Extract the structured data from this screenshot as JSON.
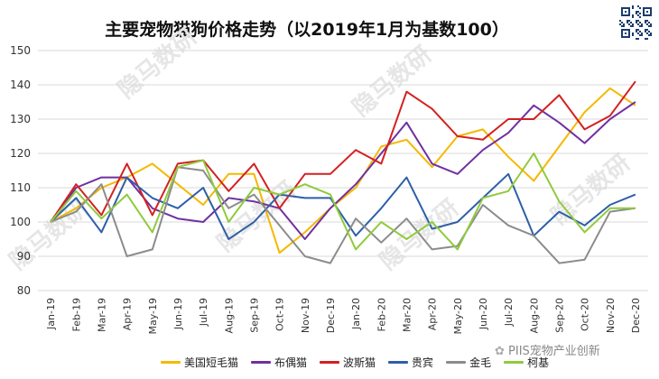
{
  "header": {
    "title": "主要宠物猫狗价格走势（以2019年1月为基数100）"
  },
  "watermark": {
    "brand": "隐马数研",
    "source": "PIIS宠物产业创新"
  },
  "colors": {
    "grid": "#d9d9d9",
    "axis_text": "#333333",
    "watermark": "#e6e6e6"
  },
  "chart_data": {
    "type": "line",
    "title": "主要宠物猫狗价格走势（以2019年1月为基数100）",
    "xlabel": "",
    "ylabel": "",
    "ylim": [
      80,
      150
    ],
    "yticks": [
      80,
      90,
      100,
      110,
      120,
      130,
      140,
      150
    ],
    "grid": true,
    "legend_position": "bottom",
    "categories": [
      "Jan-19",
      "Feb-19",
      "Mar-19",
      "Apr-19",
      "May-19",
      "Jun-19",
      "Jul-19",
      "Aug-19",
      "Sep-19",
      "Oct-19",
      "Nov-19",
      "Dec-19",
      "Jan-20",
      "Feb-20",
      "Mar-20",
      "Apr-20",
      "May-20",
      "Jun-20",
      "Jul-20",
      "Aug-20",
      "Sep-20",
      "Oct-20",
      "Nov-20",
      "Dec-20"
    ],
    "series": [
      {
        "name": "美国短毛猫",
        "color": "#f5b800",
        "values": [
          100,
          104,
          110,
          113,
          117,
          111,
          105,
          114,
          114,
          91,
          97,
          104,
          110,
          122,
          124,
          116,
          125,
          127,
          119,
          112,
          122,
          132,
          139,
          134
        ]
      },
      {
        "name": "布偶猫",
        "color": "#7030a0",
        "values": [
          100,
          110,
          113,
          113,
          104,
          101,
          100,
          107,
          106,
          104,
          95,
          104,
          111,
          120,
          129,
          117,
          114,
          121,
          126,
          134,
          129,
          123,
          130,
          135
        ]
      },
      {
        "name": "波斯猫",
        "color": "#d42020",
        "values": [
          100,
          111,
          102,
          117,
          102,
          117,
          118,
          109,
          117,
          104,
          114,
          114,
          121,
          117,
          138,
          133,
          125,
          124,
          130,
          130,
          137,
          127,
          131,
          141
        ]
      },
      {
        "name": "贵宾",
        "color": "#2e5fa8",
        "values": [
          100,
          107,
          97,
          113,
          107,
          104,
          110,
          95,
          100,
          108,
          107,
          107,
          96,
          104,
          113,
          98,
          100,
          107,
          114,
          96,
          103,
          99,
          105,
          108
        ]
      },
      {
        "name": "金毛",
        "color": "#8c8c8c",
        "values": [
          100,
          103,
          111,
          90,
          92,
          116,
          115,
          104,
          108,
          99,
          90,
          88,
          101,
          94,
          101,
          92,
          93,
          105,
          99,
          96,
          88,
          89,
          103,
          104
        ]
      },
      {
        "name": "柯基",
        "color": "#8fcb3c",
        "values": [
          100,
          109,
          101,
          108,
          97,
          116,
          118,
          100,
          110,
          108,
          111,
          108,
          92,
          100,
          95,
          100,
          92,
          107,
          109,
          120,
          106,
          97,
          104,
          104
        ]
      }
    ]
  }
}
